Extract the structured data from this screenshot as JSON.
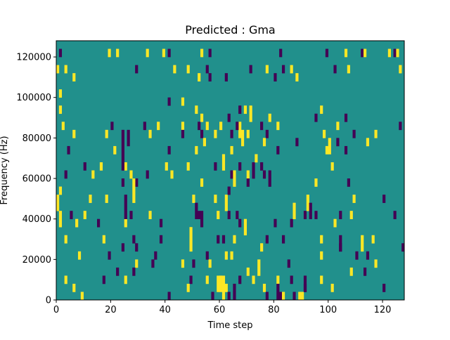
{
  "chart_data": {
    "type": "heatmap",
    "title": "Predicted : Gma",
    "xlabel": "Time step",
    "ylabel": "Frequency (Hz)",
    "xlim": [
      0,
      128
    ],
    "ylim": [
      0,
      128000
    ],
    "x_ticks": [
      0,
      20,
      40,
      60,
      80,
      100,
      120
    ],
    "x_tick_labels": [
      "0",
      "20",
      "40",
      "60",
      "80",
      "100",
      "120"
    ],
    "y_ticks": [
      0,
      20000,
      40000,
      60000,
      80000,
      100000,
      120000
    ],
    "y_tick_labels": [
      "0",
      "20000",
      "40000",
      "60000",
      "80000",
      "100000",
      "120000"
    ],
    "grid": false,
    "legend": "none",
    "colormap": "viridis",
    "value_range": [
      -1,
      1
    ],
    "background_value": 0,
    "colors": {
      "low": "#440154",
      "mid": "#21908c",
      "high": "#fde725"
    },
    "cell_size": {
      "time_steps": 1,
      "frequency_hz": 4000
    },
    "cells": [
      [
        1,
        120000,
        -1
      ],
      [
        19,
        120000,
        1
      ],
      [
        22,
        120000,
        1
      ],
      [
        33,
        120000,
        1
      ],
      [
        39,
        120000,
        1
      ],
      [
        41,
        120000,
        -1
      ],
      [
        53,
        120000,
        1
      ],
      [
        56,
        120000,
        -1
      ],
      [
        82,
        120000,
        -1
      ],
      [
        99,
        120000,
        -1
      ],
      [
        106,
        120000,
        1
      ],
      [
        112,
        120000,
        -1
      ],
      [
        113,
        120000,
        1
      ],
      [
        122,
        120000,
        1
      ],
      [
        124,
        120000,
        -1
      ],
      [
        125,
        120000,
        1
      ],
      [
        0,
        112000,
        1
      ],
      [
        3,
        112000,
        1
      ],
      [
        29,
        112000,
        -1
      ],
      [
        43,
        112000,
        1
      ],
      [
        48,
        112000,
        1
      ],
      [
        55,
        112000,
        -1
      ],
      [
        71,
        112000,
        -1
      ],
      [
        77,
        112000,
        1
      ],
      [
        83,
        112000,
        -1
      ],
      [
        86,
        112000,
        1
      ],
      [
        102,
        112000,
        -1
      ],
      [
        107,
        112000,
        1
      ],
      [
        126,
        112000,
        1
      ],
      [
        6,
        108000,
        1
      ],
      [
        52,
        108000,
        1
      ],
      [
        56,
        108000,
        -1
      ],
      [
        62,
        108000,
        -1
      ],
      [
        80,
        108000,
        -1
      ],
      [
        88,
        108000,
        1
      ],
      [
        41,
        96000,
        -1
      ],
      [
        46,
        96000,
        1
      ],
      [
        1,
        92000,
        1
      ],
      [
        51,
        92000,
        1
      ],
      [
        67,
        92000,
        -1
      ],
      [
        69,
        92000,
        1
      ],
      [
        97,
        92000,
        1
      ],
      [
        95,
        88000,
        -1
      ],
      [
        63,
        88000,
        -1
      ],
      [
        78,
        88000,
        1
      ],
      [
        106,
        88000,
        -1
      ],
      [
        2,
        84000,
        1
      ],
      [
        20,
        84000,
        -1
      ],
      [
        32,
        84000,
        -1
      ],
      [
        37,
        84000,
        1
      ],
      [
        46,
        84000,
        1
      ],
      [
        52,
        84000,
        -1
      ],
      [
        55,
        84000,
        1
      ],
      [
        60,
        84000,
        1
      ],
      [
        67,
        84000,
        1
      ],
      [
        75,
        84000,
        -1
      ],
      [
        81,
        84000,
        1
      ],
      [
        103,
        84000,
        1
      ],
      [
        126,
        84000,
        -1
      ],
      [
        6,
        80000,
        1
      ],
      [
        18,
        80000,
        1
      ],
      [
        24,
        80000,
        -1
      ],
      [
        26,
        80000,
        -1
      ],
      [
        34,
        80000,
        1
      ],
      [
        46,
        80000,
        -1
      ],
      [
        53,
        80000,
        -1
      ],
      [
        58,
        80000,
        1
      ],
      [
        64,
        80000,
        -1
      ],
      [
        67,
        80000,
        1
      ],
      [
        70,
        80000,
        1
      ],
      [
        77,
        80000,
        -1
      ],
      [
        98,
        80000,
        1
      ],
      [
        109,
        80000,
        -1
      ],
      [
        117,
        80000,
        1
      ],
      [
        26,
        76000,
        -1
      ],
      [
        88,
        76000,
        -1
      ],
      [
        103,
        76000,
        -1
      ],
      [
        114,
        76000,
        1
      ],
      [
        4,
        72000,
        -1
      ],
      [
        21,
        72000,
        1
      ],
      [
        41,
        72000,
        -1
      ],
      [
        51,
        72000,
        1
      ],
      [
        64,
        72000,
        1
      ],
      [
        81,
        72000,
        -1
      ],
      [
        99,
        72000,
        1
      ],
      [
        106,
        72000,
        -1
      ],
      [
        10,
        64000,
        -1
      ],
      [
        16,
        64000,
        1
      ],
      [
        25,
        64000,
        1
      ],
      [
        40,
        64000,
        1
      ],
      [
        48,
        64000,
        1
      ],
      [
        58,
        64000,
        -1
      ],
      [
        67,
        64000,
        -1
      ],
      [
        75,
        64000,
        -1
      ],
      [
        3,
        60000,
        -1
      ],
      [
        13,
        60000,
        1
      ],
      [
        27,
        60000,
        1
      ],
      [
        33,
        60000,
        -1
      ],
      [
        42,
        60000,
        1
      ],
      [
        64,
        60000,
        -1
      ],
      [
        70,
        60000,
        1
      ],
      [
        76,
        60000,
        -1
      ],
      [
        24,
        56000,
        -1
      ],
      [
        29,
        56000,
        -1
      ],
      [
        53,
        56000,
        1
      ],
      [
        70,
        56000,
        -1
      ],
      [
        107,
        56000,
        -1
      ],
      [
        95,
        56000,
        1
      ],
      [
        12,
        48000,
        1
      ],
      [
        18,
        48000,
        1
      ],
      [
        50,
        48000,
        1
      ],
      [
        58,
        48000,
        1
      ],
      [
        109,
        48000,
        1
      ],
      [
        120,
        48000,
        -1
      ],
      [
        5,
        40000,
        -1
      ],
      [
        10,
        40000,
        1
      ],
      [
        27,
        40000,
        -1
      ],
      [
        34,
        40000,
        1
      ],
      [
        52,
        40000,
        -1
      ],
      [
        63,
        40000,
        -1
      ],
      [
        66,
        40000,
        -1
      ],
      [
        91,
        40000,
        -1
      ],
      [
        95,
        40000,
        -1
      ],
      [
        104,
        40000,
        -1
      ],
      [
        108,
        40000,
        1
      ],
      [
        124,
        40000,
        -1
      ],
      [
        7,
        36000,
        1
      ],
      [
        15,
        36000,
        -1
      ],
      [
        25,
        36000,
        1
      ],
      [
        38,
        36000,
        -1
      ],
      [
        67,
        36000,
        -1
      ],
      [
        80,
        36000,
        -1
      ],
      [
        86,
        36000,
        -1
      ],
      [
        102,
        36000,
        1
      ],
      [
        3,
        28000,
        1
      ],
      [
        17,
        28000,
        1
      ],
      [
        28,
        28000,
        -1
      ],
      [
        38,
        28000,
        -1
      ],
      [
        61,
        28000,
        -1
      ],
      [
        65,
        28000,
        1
      ],
      [
        77,
        28000,
        -1
      ],
      [
        83,
        28000,
        -1
      ],
      [
        97,
        28000,
        1
      ],
      [
        116,
        28000,
        1
      ],
      [
        24,
        24000,
        -1
      ],
      [
        29,
        24000,
        -1
      ],
      [
        75,
        24000,
        1
      ],
      [
        104,
        24000,
        -1
      ],
      [
        112,
        24000,
        1
      ],
      [
        127,
        24000,
        -1
      ],
      [
        8,
        20000,
        1
      ],
      [
        19,
        20000,
        -1
      ],
      [
        36,
        20000,
        -1
      ],
      [
        55,
        20000,
        -1
      ],
      [
        62,
        20000,
        1
      ],
      [
        97,
        20000,
        1
      ],
      [
        110,
        20000,
        -1
      ],
      [
        114,
        20000,
        -1
      ],
      [
        29,
        16000,
        1
      ],
      [
        35,
        16000,
        -1
      ],
      [
        46,
        16000,
        1
      ],
      [
        85,
        16000,
        -1
      ],
      [
        117,
        16000,
        1
      ],
      [
        22,
        12000,
        -1
      ],
      [
        28,
        12000,
        -1
      ],
      [
        74,
        12000,
        1
      ],
      [
        108,
        12000,
        1
      ],
      [
        113,
        12000,
        -1
      ],
      [
        3,
        8000,
        1
      ],
      [
        17,
        8000,
        -1
      ],
      [
        25,
        8000,
        1
      ],
      [
        49,
        8000,
        -1
      ],
      [
        55,
        8000,
        1
      ],
      [
        60,
        8000,
        1
      ],
      [
        67,
        8000,
        -1
      ],
      [
        72,
        8000,
        1
      ],
      [
        81,
        8000,
        1
      ],
      [
        86,
        8000,
        -1
      ],
      [
        97,
        8000,
        1
      ],
      [
        6,
        4000,
        1
      ],
      [
        48,
        4000,
        1
      ],
      [
        65,
        4000,
        -1
      ],
      [
        76,
        4000,
        1
      ],
      [
        91,
        4000,
        -1
      ],
      [
        120,
        4000,
        -1
      ],
      [
        9,
        0,
        1
      ],
      [
        41,
        0,
        -1
      ],
      [
        57,
        0,
        -1
      ],
      [
        65,
        0,
        -1
      ],
      [
        77,
        0,
        -1
      ],
      [
        87,
        0,
        -1
      ],
      [
        1,
        100000,
        1
      ]
    ],
    "segments": [
      [
        0,
        1,
        44000,
        52000,
        1
      ],
      [
        1,
        2,
        36000,
        44000,
        1
      ],
      [
        1,
        2,
        52000,
        56000,
        1
      ],
      [
        24,
        25,
        64000,
        80000,
        -1
      ],
      [
        25,
        26,
        40000,
        52000,
        -1
      ],
      [
        28,
        29,
        48000,
        60000,
        1
      ],
      [
        49,
        50,
        24000,
        36000,
        1
      ],
      [
        50,
        51,
        16000,
        20000,
        -1
      ],
      [
        51,
        52,
        40000,
        48000,
        -1
      ],
      [
        53,
        54,
        36000,
        44000,
        -1
      ],
      [
        53,
        54,
        88000,
        92000,
        1
      ],
      [
        54,
        55,
        76000,
        80000,
        1
      ],
      [
        56,
        57,
        16000,
        20000,
        1
      ],
      [
        59,
        60,
        4000,
        12000,
        1
      ],
      [
        59,
        60,
        28000,
        32000,
        -1
      ],
      [
        59,
        60,
        40000,
        44000,
        1
      ],
      [
        60,
        61,
        4000,
        12000,
        1
      ],
      [
        61,
        62,
        0,
        12000,
        1
      ],
      [
        62,
        63,
        4000,
        8000,
        1
      ],
      [
        63,
        64,
        0,
        4000,
        -1
      ],
      [
        61,
        62,
        64000,
        72000,
        1
      ],
      [
        62,
        63,
        44000,
        52000,
        1
      ],
      [
        63,
        64,
        52000,
        56000,
        -1
      ],
      [
        64,
        65,
        20000,
        24000,
        1
      ],
      [
        65,
        66,
        56000,
        64000,
        1
      ],
      [
        66,
        67,
        84000,
        88000,
        -1
      ],
      [
        68,
        69,
        76000,
        84000,
        1
      ],
      [
        69,
        70,
        32000,
        40000,
        1
      ],
      [
        70,
        71,
        12000,
        16000,
        1
      ],
      [
        71,
        72,
        88000,
        96000,
        1
      ],
      [
        72,
        73,
        60000,
        68000,
        -1
      ],
      [
        73,
        74,
        68000,
        72000,
        1
      ],
      [
        74,
        75,
        16000,
        20000,
        1
      ],
      [
        76,
        77,
        76000,
        80000,
        1
      ],
      [
        78,
        79,
        56000,
        64000,
        -1
      ],
      [
        81,
        82,
        0,
        8000,
        -1
      ],
      [
        82,
        83,
        0,
        4000,
        -1
      ],
      [
        83,
        84,
        0,
        4000,
        1
      ],
      [
        87,
        88,
        40000,
        48000,
        1
      ],
      [
        89,
        90,
        0,
        4000,
        1
      ],
      [
        90,
        91,
        0,
        4000,
        1
      ],
      [
        91,
        92,
        4000,
        12000,
        -1
      ],
      [
        92,
        93,
        44000,
        52000,
        1
      ],
      [
        93,
        94,
        40000,
        48000,
        -1
      ],
      [
        100,
        101,
        72000,
        80000,
        1
      ],
      [
        101,
        102,
        4000,
        8000,
        1
      ],
      [
        101,
        102,
        64000,
        68000,
        1
      ],
      [
        104,
        105,
        24000,
        32000,
        -1
      ],
      [
        112,
        113,
        28000,
        32000,
        1
      ]
    ]
  }
}
